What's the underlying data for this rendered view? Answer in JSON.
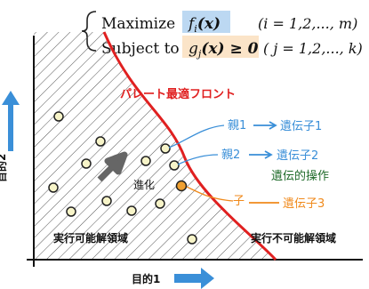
{
  "equations": {
    "row1": {
      "keyword": "Maximize",
      "func": "f",
      "sub": "i",
      "arg": "(x)",
      "range": "(i = 1,2,..., m)"
    },
    "row2": {
      "keyword": "Subject to",
      "func": "g",
      "sub": "j",
      "arg": "(x) ≥ 0",
      "range": "( j = 1,2,..., k)"
    }
  },
  "labels": {
    "pareto_front": "パレート最適フロント",
    "parent1": "親1",
    "parent2": "親2",
    "gene1": "遺伝子1",
    "gene2": "遺伝子2",
    "genetic_operation": "遺伝的操作",
    "child": "子",
    "gene3": "遺伝子3",
    "evolution": "進化",
    "feasible": "実行可能解領域",
    "infeasible": "実行不可能解領域",
    "objective1": "目的1",
    "objective2": "目的2"
  },
  "colors": {
    "pareto": "#e02020",
    "blue": "#3a8fd8",
    "orange": "#f08a1c",
    "green": "#1f6b2a",
    "dot_fill": "#f7f4c8",
    "child_fill": "#f0a030"
  }
}
